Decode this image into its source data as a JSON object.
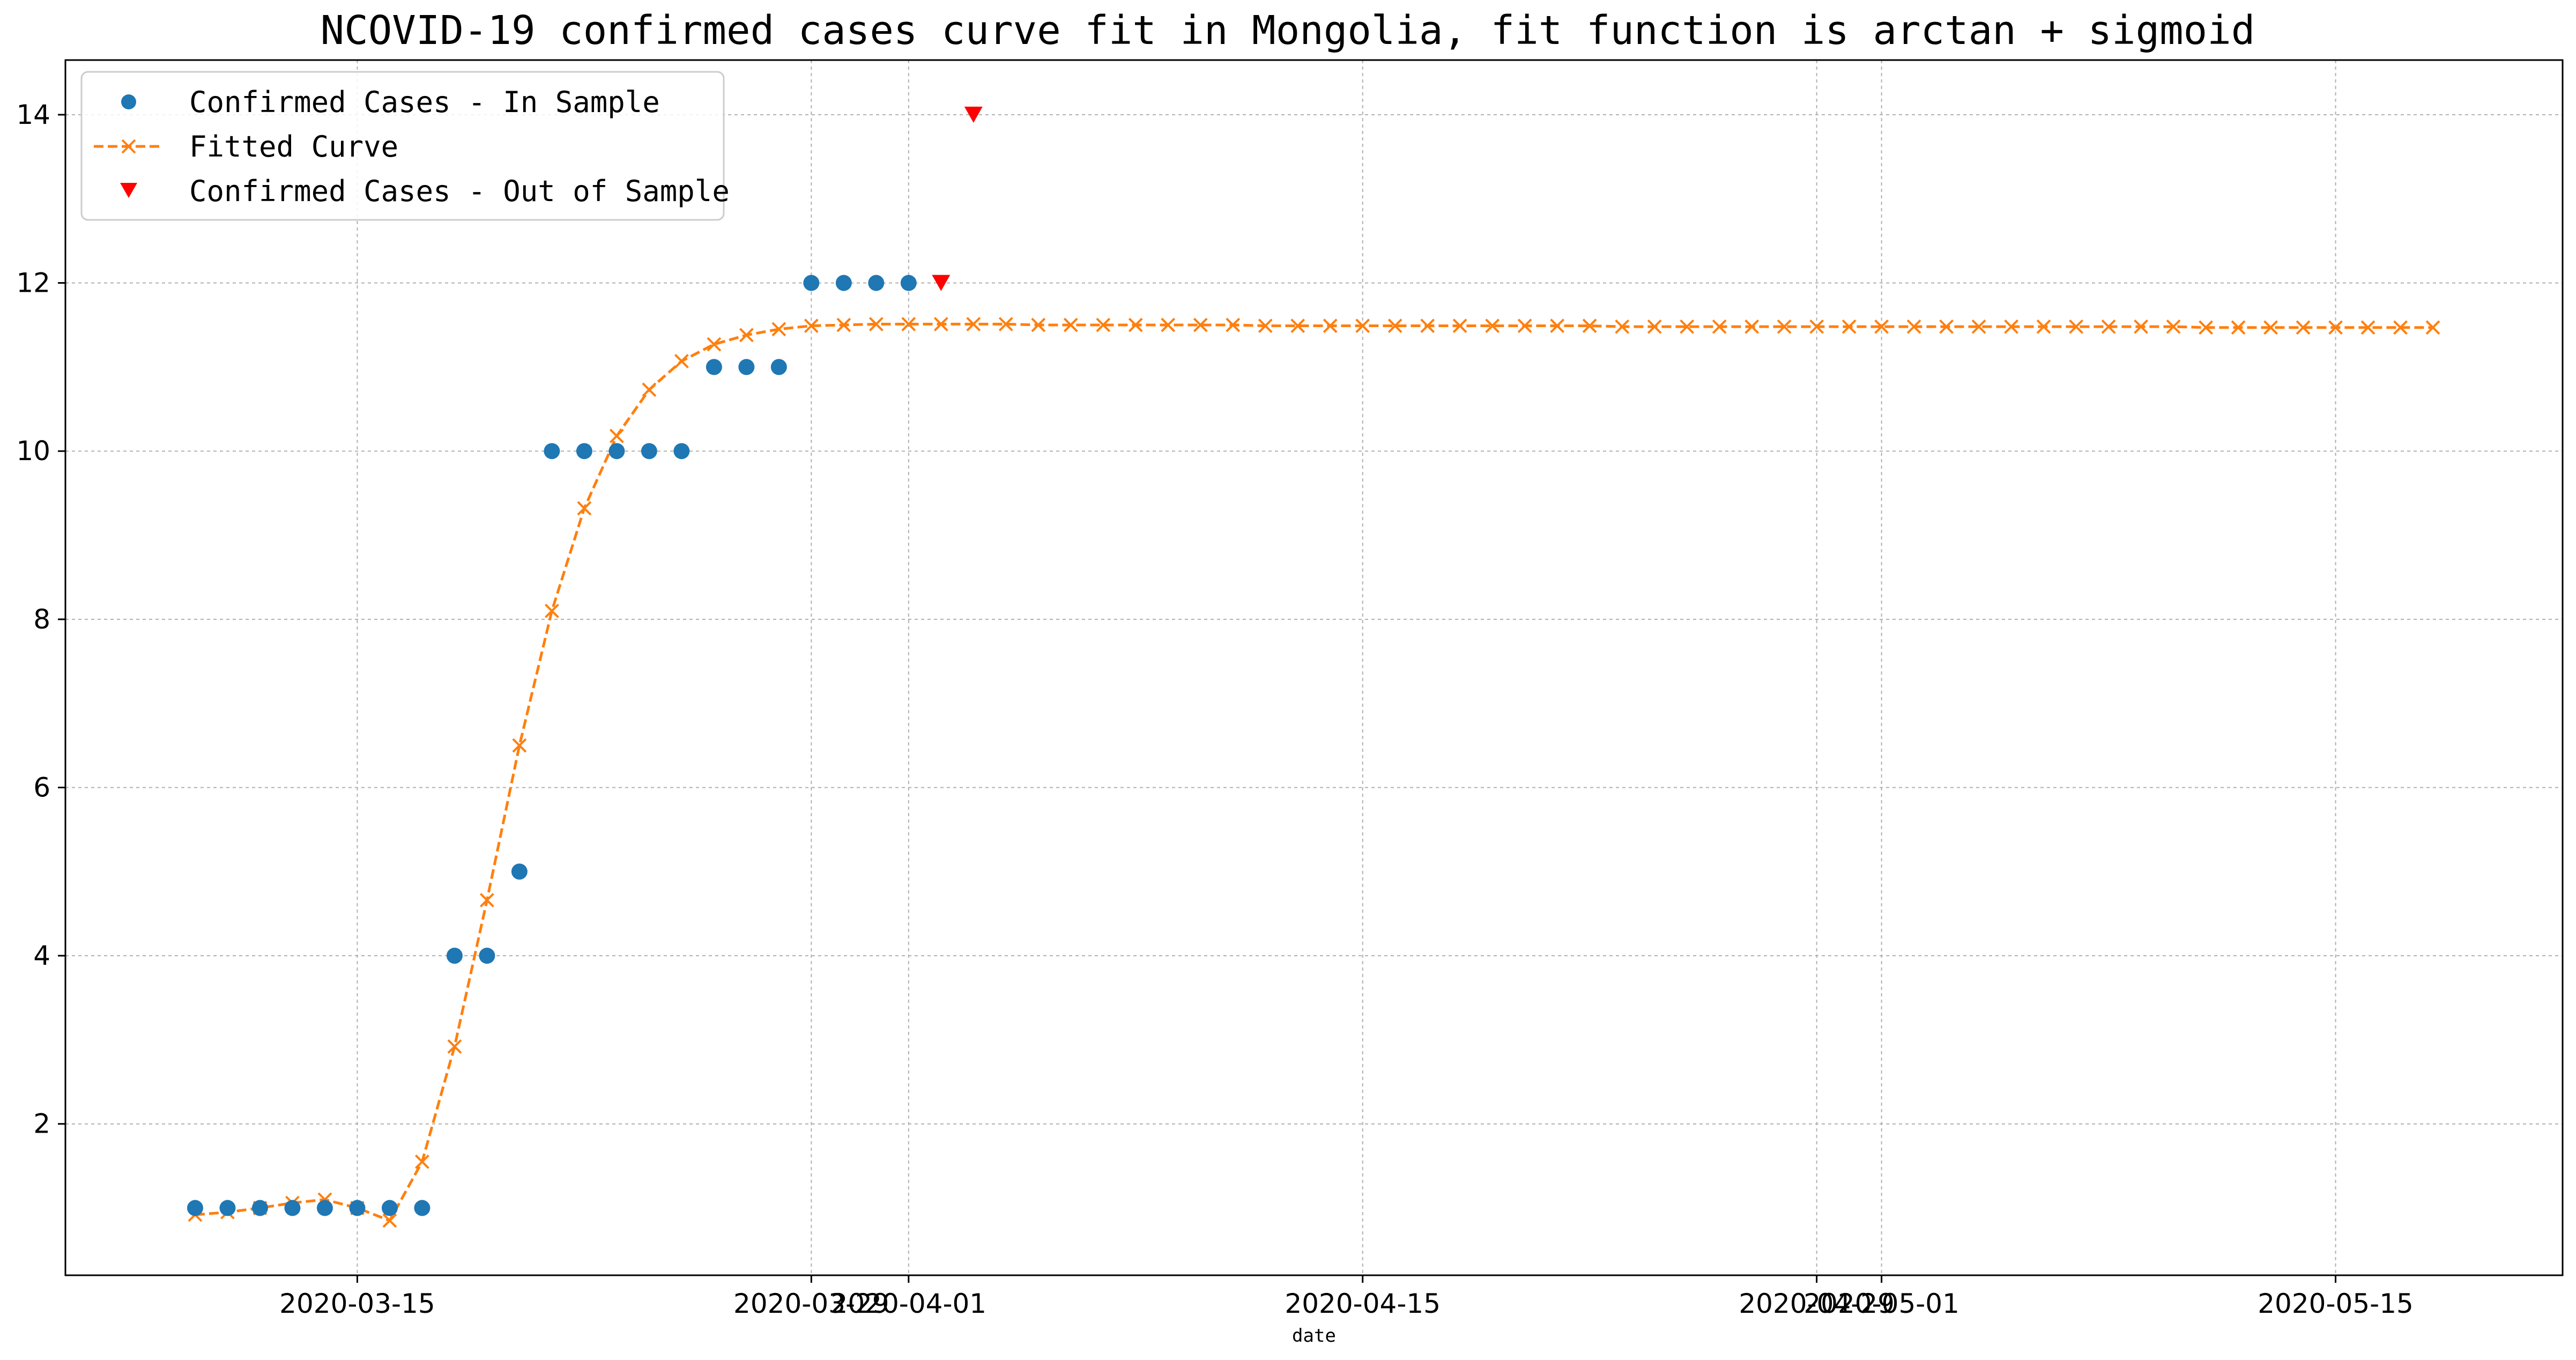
{
  "chart_data": {
    "type": "line",
    "title": "NCOVID-19 confirmed cases curve fit in Mongolia, fit function is arctan + sigmoid",
    "xlabel": "date",
    "ylabel": "",
    "x_type": "date",
    "xlim": [
      "2020-03-06",
      "2020-05-22"
    ],
    "ylim": [
      0.2,
      14.65
    ],
    "x_ticks": [
      {
        "date": "2020-03-15",
        "label": "2020-03-15"
      },
      {
        "date": "2020-03-29",
        "label": "2020-03-29"
      },
      {
        "date": "2020-04-01",
        "label": "2020-04-01"
      },
      {
        "date": "2020-04-15",
        "label": "2020-04-15"
      },
      {
        "date": "2020-04-29",
        "label": "2020-04-29"
      },
      {
        "date": "2020-05-01",
        "label": "2020-05-01"
      },
      {
        "date": "2020-05-15",
        "label": "2020-05-15"
      }
    ],
    "y_ticks": [
      2,
      4,
      6,
      8,
      10,
      12,
      14
    ],
    "grid": true,
    "legend": "top-left",
    "series": [
      {
        "name": "Confirmed Cases - In Sample",
        "kind": "scatter",
        "marker": "circle",
        "color": "#1f77b4",
        "points": [
          [
            "2020-03-10",
            1
          ],
          [
            "2020-03-11",
            1
          ],
          [
            "2020-03-12",
            1
          ],
          [
            "2020-03-13",
            1
          ],
          [
            "2020-03-14",
            1
          ],
          [
            "2020-03-15",
            1
          ],
          [
            "2020-03-16",
            1
          ],
          [
            "2020-03-17",
            1
          ],
          [
            "2020-03-18",
            4
          ],
          [
            "2020-03-19",
            4
          ],
          [
            "2020-03-20",
            5
          ],
          [
            "2020-03-21",
            10
          ],
          [
            "2020-03-22",
            10
          ],
          [
            "2020-03-23",
            10
          ],
          [
            "2020-03-24",
            10
          ],
          [
            "2020-03-25",
            10
          ],
          [
            "2020-03-26",
            11
          ],
          [
            "2020-03-27",
            11
          ],
          [
            "2020-03-28",
            11
          ],
          [
            "2020-03-29",
            12
          ],
          [
            "2020-03-30",
            12
          ],
          [
            "2020-03-31",
            12
          ],
          [
            "2020-04-01",
            12
          ]
        ]
      },
      {
        "name": "Fitted Curve",
        "kind": "line",
        "marker": "x",
        "linestyle": "dashed",
        "color": "#ff7f0e",
        "start": "2020-03-10",
        "values": [
          0.92,
          0.95,
          1.0,
          1.06,
          1.1,
          1.0,
          0.85,
          1.55,
          2.92,
          4.66,
          6.5,
          8.1,
          9.32,
          10.18,
          10.73,
          11.07,
          11.27,
          11.38,
          11.45,
          11.49,
          11.5,
          11.51,
          11.51,
          11.51,
          11.51,
          11.51,
          11.5,
          11.5,
          11.5,
          11.5,
          11.5,
          11.5,
          11.5,
          11.49,
          11.49,
          11.49,
          11.49,
          11.49,
          11.49,
          11.49,
          11.49,
          11.49,
          11.49,
          11.49,
          11.48,
          11.48,
          11.48,
          11.48,
          11.48,
          11.48,
          11.48,
          11.48,
          11.48,
          11.48,
          11.48,
          11.48,
          11.48,
          11.48,
          11.48,
          11.48,
          11.48,
          11.48,
          11.47,
          11.47,
          11.47,
          11.47,
          11.47,
          11.47,
          11.47,
          11.47
        ]
      },
      {
        "name": "Confirmed Cases - Out of Sample",
        "kind": "scatter",
        "marker": "triangle-down",
        "color": "#ff0000",
        "points": [
          [
            "2020-04-02",
            12
          ],
          [
            "2020-04-03",
            14
          ]
        ]
      }
    ]
  }
}
